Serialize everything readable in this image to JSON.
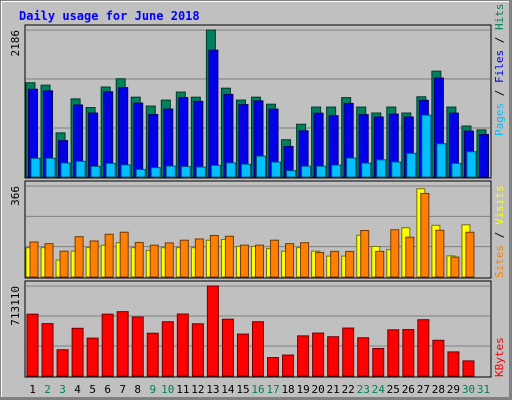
{
  "title": "Daily usage for June 2018",
  "colors": {
    "background": "#c0c0c0",
    "panel": "#c0c0c0",
    "grid": "#808080",
    "hits": "#00805c",
    "files": "#0000e6",
    "pages": "#00c0ff",
    "visits": "#ffff00",
    "sites": "#ff8000",
    "kbytes": "#ff0000",
    "weekday_label": "#000000",
    "weekend_label": "#00805c",
    "title": "#0000ff"
  },
  "right_labels": {
    "top": [
      {
        "text": "Pages",
        "color": "#00c0ff"
      },
      {
        "text": " / ",
        "color": "#000000"
      },
      {
        "text": "Files",
        "color": "#0000e6"
      },
      {
        "text": " / ",
        "color": "#000000"
      },
      {
        "text": "Hits",
        "color": "#00805c"
      }
    ],
    "middle": [
      {
        "text": "Sites",
        "color": "#ff8000"
      },
      {
        "text": " / ",
        "color": "#000000"
      },
      {
        "text": "Visits",
        "color": "#ffff00"
      }
    ],
    "bottom": [
      {
        "text": "KBytes",
        "color": "#ff0000"
      }
    ]
  },
  "chart_data": [
    {
      "type": "bar",
      "ylabel": "Pages / Files / Hits",
      "ylim": [
        0,
        2186
      ],
      "y_tick": "2186",
      "days": [
        1,
        2,
        3,
        4,
        5,
        6,
        7,
        8,
        9,
        10,
        11,
        12,
        13,
        14,
        15,
        16,
        17,
        18,
        19,
        20,
        21,
        22,
        23,
        24,
        25,
        26,
        27,
        28,
        29,
        30,
        31
      ],
      "weekend_days": [
        2,
        3,
        9,
        10,
        16,
        17,
        23,
        24,
        30,
        31
      ],
      "series": [
        {
          "name": "Hits",
          "values": [
            1402,
            1366,
            656,
            1162,
            1033,
            1338,
            1461,
            1187,
            1055,
            1144,
            1263,
            1187,
            2186,
            1321,
            1144,
            1187,
            1083,
            554,
            785,
            1040,
            1040,
            1181,
            1040,
            952,
            1040,
            952,
            1193,
            1574,
            1040,
            758,
            701
          ]
        },
        {
          "name": "Files",
          "values": [
            1305,
            1281,
            541,
            1071,
            951,
            1267,
            1329,
            1099,
            929,
            1010,
            1181,
            1125,
            1886,
            1228,
            1076,
            1132,
            1010,
            454,
            687,
            949,
            912,
            1095,
            928,
            892,
            936,
            892,
            1140,
            1471,
            950,
            683,
            631
          ]
        },
        {
          "name": "Pages",
          "values": [
            278,
            279,
            208,
            233,
            158,
            202,
            180,
            112,
            139,
            163,
            155,
            148,
            173,
            210,
            190,
            310,
            221,
            94,
            160,
            160,
            177,
            281,
            206,
            255,
            223,
            352,
            920,
            495,
            202,
            376,
            0
          ]
        }
      ]
    },
    {
      "type": "bar",
      "ylabel": "Sites / Visits",
      "ylim": [
        0,
        366
      ],
      "y_tick": "366",
      "days": [
        1,
        2,
        3,
        4,
        5,
        6,
        7,
        8,
        9,
        10,
        11,
        12,
        13,
        14,
        15,
        16,
        17,
        18,
        19,
        20,
        21,
        22,
        23,
        24,
        25,
        26,
        27,
        28,
        29,
        30,
        31
      ],
      "series": [
        {
          "name": "Visits",
          "values": [
            118,
            118,
            68,
            104,
            118,
            128,
            138,
            118,
            107,
            118,
            118,
            118,
            148,
            151,
            123,
            123,
            114,
            104,
            118,
            104,
            84,
            84,
            168,
            123,
            110,
            198,
            355,
            208,
            85,
            210,
            0
          ]
        },
        {
          "name": "Sites",
          "values": [
            141,
            134,
            104,
            162,
            145,
            172,
            180,
            139,
            128,
            137,
            148,
            153,
            167,
            164,
            128,
            128,
            148,
            134,
            138,
            99,
            103,
            103,
            187,
            103,
            190,
            160,
            336,
            188,
            80,
            180,
            0
          ]
        }
      ]
    },
    {
      "type": "bar",
      "ylabel": "KBytes",
      "ylim": [
        0,
        713110
      ],
      "y_tick": "713110",
      "days": [
        1,
        2,
        3,
        4,
        5,
        6,
        7,
        8,
        9,
        10,
        11,
        12,
        13,
        14,
        15,
        16,
        17,
        18,
        19,
        20,
        21,
        22,
        23,
        24,
        25,
        26,
        27,
        28,
        29,
        30,
        31
      ],
      "series": [
        {
          "name": "KBytes",
          "values": [
            490000,
            415000,
            208000,
            378000,
            300000,
            490000,
            510000,
            467000,
            339000,
            430000,
            491000,
            414000,
            713110,
            450000,
            332000,
            430000,
            146000,
            166000,
            318000,
            340000,
            311000,
            380000,
            303000,
            218000,
            366000,
            368000,
            446000,
            283000,
            191000,
            120000,
            0
          ]
        }
      ]
    }
  ]
}
